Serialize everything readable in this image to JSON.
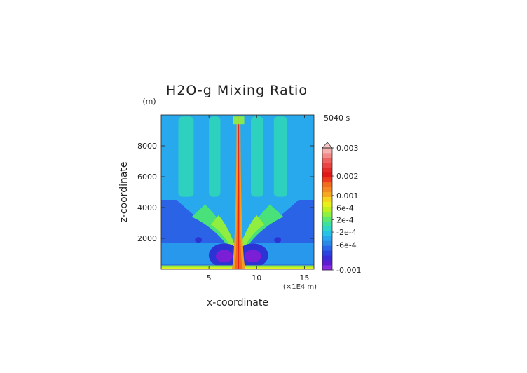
{
  "chart_data": {
    "type": "heatmap",
    "title": "H2O-g Mixing Ratio",
    "xlabel": "x-coordinate",
    "ylabel": "z-coordinate",
    "x_unit": "(×1E4 m)",
    "y_unit": "(m)",
    "time_label": "5040 s",
    "xlim": [
      0,
      16
    ],
    "ylim": [
      0,
      10000
    ],
    "x_ticks": [
      5,
      10,
      15
    ],
    "y_ticks": [
      2000,
      4000,
      6000,
      8000
    ],
    "y_tick_labels": [
      "2000",
      "4000",
      "6000",
      "8000"
    ],
    "colorbar": {
      "ticks": [
        -0.001,
        -0.0006,
        -0.0002,
        0.0002,
        0.0006,
        0.001,
        0.002,
        0.003
      ],
      "labels": [
        "-0.001",
        "-6e-4",
        "-2e-4",
        "2e-4",
        "6e-4",
        "0.001",
        "0.002",
        "0.003"
      ],
      "colors": [
        "#8a2be2",
        "#5b1fd0",
        "#3a2bd8",
        "#2b44e0",
        "#2a66e8",
        "#2a8ae8",
        "#2aa6f0",
        "#27c2e8",
        "#2fd6c8",
        "#3ee0a0",
        "#5ee870",
        "#8ef040",
        "#c0f020",
        "#e6f01a",
        "#f6d41e",
        "#f7a820",
        "#f68a22",
        "#f26d20",
        "#ee3a1e",
        "#e01818",
        "#e52a2a",
        "#ea4444",
        "#ee6262",
        "#f38a8a",
        "#f6b0b0"
      ]
    },
    "field_description": "Mixing ratio anomaly of water vapour at t = 5040 s; strong positive values (red) in a narrow central plume near x≈8, negative (blue/purple) lobes at x≈6.5 and x≈9.5 near the surface, weak green bands aloft."
  }
}
